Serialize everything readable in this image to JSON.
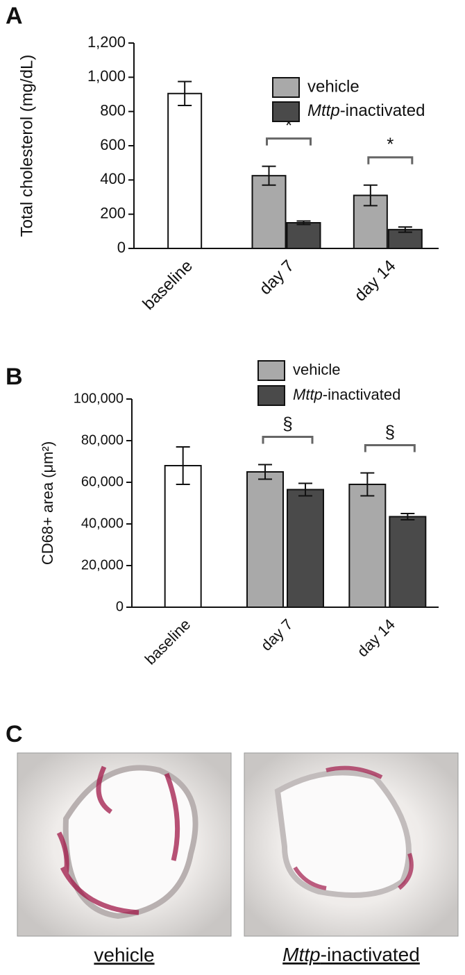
{
  "chart_data": [
    {
      "type": "bar",
      "panel": "A",
      "y_label": "Total cholesterol (mg/dL)",
      "categories": [
        "baseline",
        "day 7",
        "day 14"
      ],
      "series": [
        {
          "color": "#ffffff",
          "values": [
            905,
            null,
            null
          ],
          "errors": [
            70,
            null,
            null
          ]
        },
        {
          "name": "vehicle",
          "color": "#a9a9a9",
          "values": [
            null,
            425,
            310
          ],
          "errors": [
            null,
            55,
            60
          ]
        },
        {
          "name": "Mttp-inactivated",
          "color": "#4a4a4a",
          "values": [
            null,
            150,
            110
          ],
          "errors": [
            null,
            10,
            15
          ]
        }
      ],
      "annotations": [
        null,
        "*",
        "*"
      ],
      "ylim": [
        0,
        1200
      ],
      "yticks": [
        0,
        200,
        400,
        600,
        800,
        {
          "value": 1000,
          "label": "1,000"
        },
        {
          "value": 1200,
          "label": "1,200"
        }
      ],
      "legend": "upper right"
    },
    {
      "type": "bar",
      "panel": "B",
      "y_label": "CD68+ area (μm²)",
      "categories": [
        "baseline",
        "day 7",
        "day 14"
      ],
      "series": [
        {
          "color": "#ffffff",
          "values": [
            68000,
            null,
            null
          ],
          "errors": [
            9000,
            null,
            null
          ]
        },
        {
          "name": "vehicle",
          "color": "#a9a9a9",
          "values": [
            null,
            65000,
            59000
          ],
          "errors": [
            null,
            3500,
            5500
          ]
        },
        {
          "name": "Mttp-inactivated",
          "color": "#4a4a4a",
          "values": [
            null,
            56500,
            43500
          ],
          "errors": [
            null,
            3000,
            1500
          ]
        }
      ],
      "annotations": [
        null,
        "§",
        "§"
      ],
      "ylim": [
        0,
        100000
      ],
      "yticks": [
        0,
        {
          "value": 20000,
          "label": "20,000"
        },
        {
          "value": 40000,
          "label": "40,000"
        },
        {
          "value": 60000,
          "label": "60,000"
        },
        {
          "value": 80000,
          "label": "80,000"
        },
        {
          "value": 100000,
          "label": "100,000"
        }
      ],
      "legend": "top"
    }
  ],
  "panel_c": {
    "panel": "C",
    "captions": [
      "vehicle",
      "Mttp-inactivated"
    ]
  }
}
